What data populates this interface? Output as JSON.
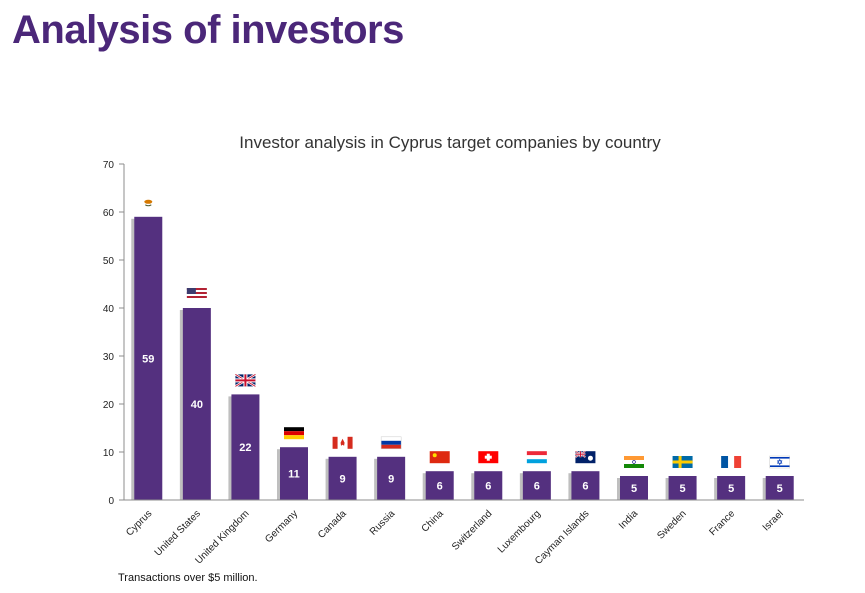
{
  "slide": {
    "title": "Analysis of investors",
    "footnote": "Transactions over $5 million."
  },
  "colors": {
    "title": "#4b2779",
    "bar": "#54307f",
    "bar_shadow": "#bfbfbf",
    "axis": "#8c8c8c",
    "text": "#222222",
    "bar_label": "#ffffff"
  },
  "chart_data": {
    "type": "bar",
    "title": "Investor analysis in Cyprus target companies by country",
    "xlabel": "",
    "ylabel": "",
    "ylim": [
      0,
      70
    ],
    "yticks": [
      0,
      10,
      20,
      30,
      40,
      50,
      60,
      70
    ],
    "grid": false,
    "legend": "none",
    "categories": [
      "Cyprus",
      "United States",
      "United Kingdom",
      "Germany",
      "Canada",
      "Russia",
      "China",
      "Switzerland",
      "Luxembourg",
      "Cayman Islands",
      "India",
      "Sweden",
      "France",
      "Israel"
    ],
    "values": [
      59,
      40,
      22,
      11,
      9,
      9,
      6,
      6,
      6,
      6,
      5,
      5,
      5,
      5
    ],
    "flags": [
      "cyprus-flag-icon",
      "usa-flag-icon",
      "uk-flag-icon",
      "germany-flag-icon",
      "canada-flag-icon",
      "russia-flag-icon",
      "china-flag-icon",
      "switzerland-flag-icon",
      "luxembourg-flag-icon",
      "cayman-islands-flag-icon",
      "india-flag-icon",
      "sweden-flag-icon",
      "france-flag-icon",
      "israel-flag-icon"
    ]
  }
}
